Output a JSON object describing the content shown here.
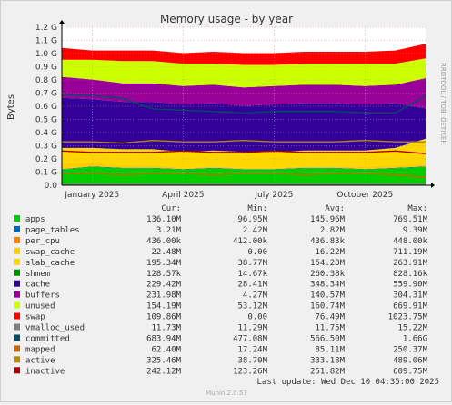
{
  "title": "Memory usage - by year",
  "side_label": "RRDTOOL / TOBI OETIKER",
  "footer": "Munin 2.0.57",
  "last_update": "Last update: Wed Dec 10 04:35:00 2025",
  "legend_header": {
    "cur": "Cur:",
    "min": "Min:",
    "avg": "Avg:",
    "max": "Max:"
  },
  "legend": [
    {
      "name": "apps",
      "color": "#00cc00",
      "cur": "136.10M",
      "min": "96.95M",
      "avg": "145.96M",
      "max": "769.51M"
    },
    {
      "name": "page_tables",
      "color": "#0066b3",
      "cur": "3.21M",
      "min": "2.42M",
      "avg": "2.82M",
      "max": "9.39M"
    },
    {
      "name": "per_cpu",
      "color": "#ff8000",
      "cur": "436.00k",
      "min": "412.00k",
      "avg": "436.83k",
      "max": "448.00k"
    },
    {
      "name": "swap_cache",
      "color": "#ffcc00",
      "cur": "22.48M",
      "min": "0.00",
      "avg": "16.22M",
      "max": "711.19M"
    },
    {
      "name": "slab_cache",
      "color": "#ffd700",
      "cur": "195.34M",
      "min": "38.77M",
      "avg": "154.28M",
      "max": "263.91M"
    },
    {
      "name": "shmem",
      "color": "#008f00",
      "cur": "128.57k",
      "min": "14.67k",
      "avg": "260.38k",
      "max": "828.16k"
    },
    {
      "name": "cache",
      "color": "#330099",
      "cur": "229.42M",
      "min": "28.41M",
      "avg": "348.34M",
      "max": "559.90M"
    },
    {
      "name": "buffers",
      "color": "#990099",
      "cur": "231.98M",
      "min": "4.27M",
      "avg": "140.57M",
      "max": "304.31M"
    },
    {
      "name": "unused",
      "color": "#ccff00",
      "cur": "154.19M",
      "min": "53.12M",
      "avg": "160.74M",
      "max": "669.91M"
    },
    {
      "name": "swap",
      "color": "#ff0000",
      "cur": "109.86M",
      "min": "0.00",
      "avg": "76.49M",
      "max": "1023.75M"
    },
    {
      "name": "vmalloc_used",
      "color": "#808080",
      "cur": "11.73M",
      "min": "11.29M",
      "avg": "11.75M",
      "max": "15.22M"
    },
    {
      "name": "committed",
      "color": "#004d66",
      "cur": "683.94M",
      "min": "477.08M",
      "avg": "566.50M",
      "max": "1.66G"
    },
    {
      "name": "mapped",
      "color": "#cc6600",
      "cur": "62.40M",
      "min": "17.24M",
      "avg": "85.11M",
      "max": "250.37M"
    },
    {
      "name": "active",
      "color": "#b8860b",
      "cur": "325.46M",
      "min": "38.70M",
      "avg": "333.18M",
      "max": "489.06M"
    },
    {
      "name": "inactive",
      "color": "#aa0000",
      "cur": "242.12M",
      "min": "123.26M",
      "avg": "251.82M",
      "max": "609.75M"
    }
  ],
  "chart_data": {
    "type": "area",
    "title": "Memory usage - by year",
    "ylabel": "Bytes",
    "ylim": [
      0,
      1.2
    ],
    "y_unit": "G",
    "y_ticks": [
      "0.0",
      "0.1 G",
      "0.2 G",
      "0.3 G",
      "0.4 G",
      "0.5 G",
      "0.6 G",
      "0.7 G",
      "0.8 G",
      "0.9 G",
      "1.0 G",
      "1.1 G",
      "1.2 G"
    ],
    "x_ticks": [
      "January 2025",
      "April 2025",
      "July 2025",
      "October 2025"
    ],
    "x": [
      "2024-12",
      "2025-01",
      "2025-02",
      "2025-03",
      "2025-04",
      "2025-05",
      "2025-06",
      "2025-07",
      "2025-08",
      "2025-09",
      "2025-10",
      "2025-11",
      "2025-12"
    ],
    "stacked_series": [
      {
        "name": "apps",
        "color": "#00cc00",
        "values": [
          0.12,
          0.14,
          0.13,
          0.13,
          0.12,
          0.13,
          0.12,
          0.12,
          0.13,
          0.13,
          0.12,
          0.13,
          0.14
        ]
      },
      {
        "name": "page_tables",
        "color": "#0066b3",
        "values": [
          0.003,
          0.003,
          0.003,
          0.003,
          0.003,
          0.003,
          0.003,
          0.003,
          0.003,
          0.003,
          0.003,
          0.003,
          0.003
        ]
      },
      {
        "name": "per_cpu",
        "color": "#ff8000",
        "values": [
          0.0004,
          0.0004,
          0.0004,
          0.0004,
          0.0004,
          0.0004,
          0.0004,
          0.0004,
          0.0004,
          0.0004,
          0.0004,
          0.0004,
          0.0004
        ]
      },
      {
        "name": "swap_cache",
        "color": "#ffcc00",
        "values": [
          0.04,
          0.03,
          0.02,
          0.02,
          0.01,
          0.01,
          0.01,
          0.01,
          0.01,
          0.01,
          0.02,
          0.02,
          0.02
        ]
      },
      {
        "name": "slab_cache",
        "color": "#ffd700",
        "values": [
          0.12,
          0.11,
          0.12,
          0.12,
          0.12,
          0.12,
          0.12,
          0.12,
          0.12,
          0.12,
          0.12,
          0.13,
          0.19
        ]
      },
      {
        "name": "shmem",
        "color": "#008f00",
        "values": [
          0.0003,
          0.0003,
          0.0003,
          0.0003,
          0.0003,
          0.0003,
          0.0003,
          0.0003,
          0.0003,
          0.0003,
          0.0003,
          0.0003,
          0.0001
        ]
      },
      {
        "name": "cache",
        "color": "#330099",
        "values": [
          0.38,
          0.37,
          0.36,
          0.36,
          0.36,
          0.36,
          0.35,
          0.36,
          0.36,
          0.36,
          0.35,
          0.34,
          0.23
        ]
      },
      {
        "name": "buffers",
        "color": "#990099",
        "values": [
          0.16,
          0.15,
          0.14,
          0.14,
          0.14,
          0.14,
          0.14,
          0.14,
          0.14,
          0.14,
          0.14,
          0.14,
          0.23
        ]
      },
      {
        "name": "unused",
        "color": "#ccff00",
        "values": [
          0.13,
          0.15,
          0.17,
          0.17,
          0.17,
          0.16,
          0.17,
          0.16,
          0.16,
          0.16,
          0.17,
          0.16,
          0.15
        ]
      },
      {
        "name": "swap",
        "color": "#ff0000",
        "values": [
          0.09,
          0.07,
          0.08,
          0.08,
          0.08,
          0.09,
          0.09,
          0.09,
          0.09,
          0.09,
          0.09,
          0.1,
          0.11
        ]
      }
    ],
    "line_series": [
      {
        "name": "vmalloc_used",
        "color": "#808080",
        "values": [
          0.012,
          0.012,
          0.012,
          0.012,
          0.012,
          0.012,
          0.012,
          0.012,
          0.012,
          0.012,
          0.012,
          0.012,
          0.012
        ]
      },
      {
        "name": "committed",
        "color": "#004d66",
        "values": [
          0.69,
          0.68,
          0.66,
          0.58,
          0.57,
          0.56,
          0.55,
          0.56,
          0.56,
          0.56,
          0.55,
          0.55,
          0.68
        ]
      },
      {
        "name": "mapped",
        "color": "#cc6600",
        "values": [
          0.09,
          0.09,
          0.08,
          0.09,
          0.09,
          0.08,
          0.09,
          0.09,
          0.08,
          0.09,
          0.09,
          0.08,
          0.06
        ]
      },
      {
        "name": "active",
        "color": "#b8860b",
        "values": [
          0.33,
          0.33,
          0.32,
          0.34,
          0.33,
          0.33,
          0.34,
          0.33,
          0.33,
          0.33,
          0.34,
          0.33,
          0.33
        ]
      },
      {
        "name": "inactive",
        "color": "#aa0000",
        "values": [
          0.26,
          0.25,
          0.25,
          0.25,
          0.26,
          0.25,
          0.25,
          0.26,
          0.25,
          0.25,
          0.25,
          0.26,
          0.24
        ]
      }
    ]
  }
}
